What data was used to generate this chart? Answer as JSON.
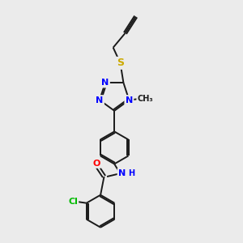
{
  "background_color": "#ebebeb",
  "bond_color": "#1a1a1a",
  "atom_colors": {
    "N": "#0000ff",
    "O": "#ff0000",
    "S": "#ccaa00",
    "Cl": "#00bb00",
    "C": "#1a1a1a",
    "H": "#0000ff"
  },
  "font_size_atoms": 8,
  "figsize": [
    3.0,
    3.0
  ],
  "dpi": 100,
  "xlim": [
    0,
    10
  ],
  "ylim": [
    0,
    10
  ]
}
